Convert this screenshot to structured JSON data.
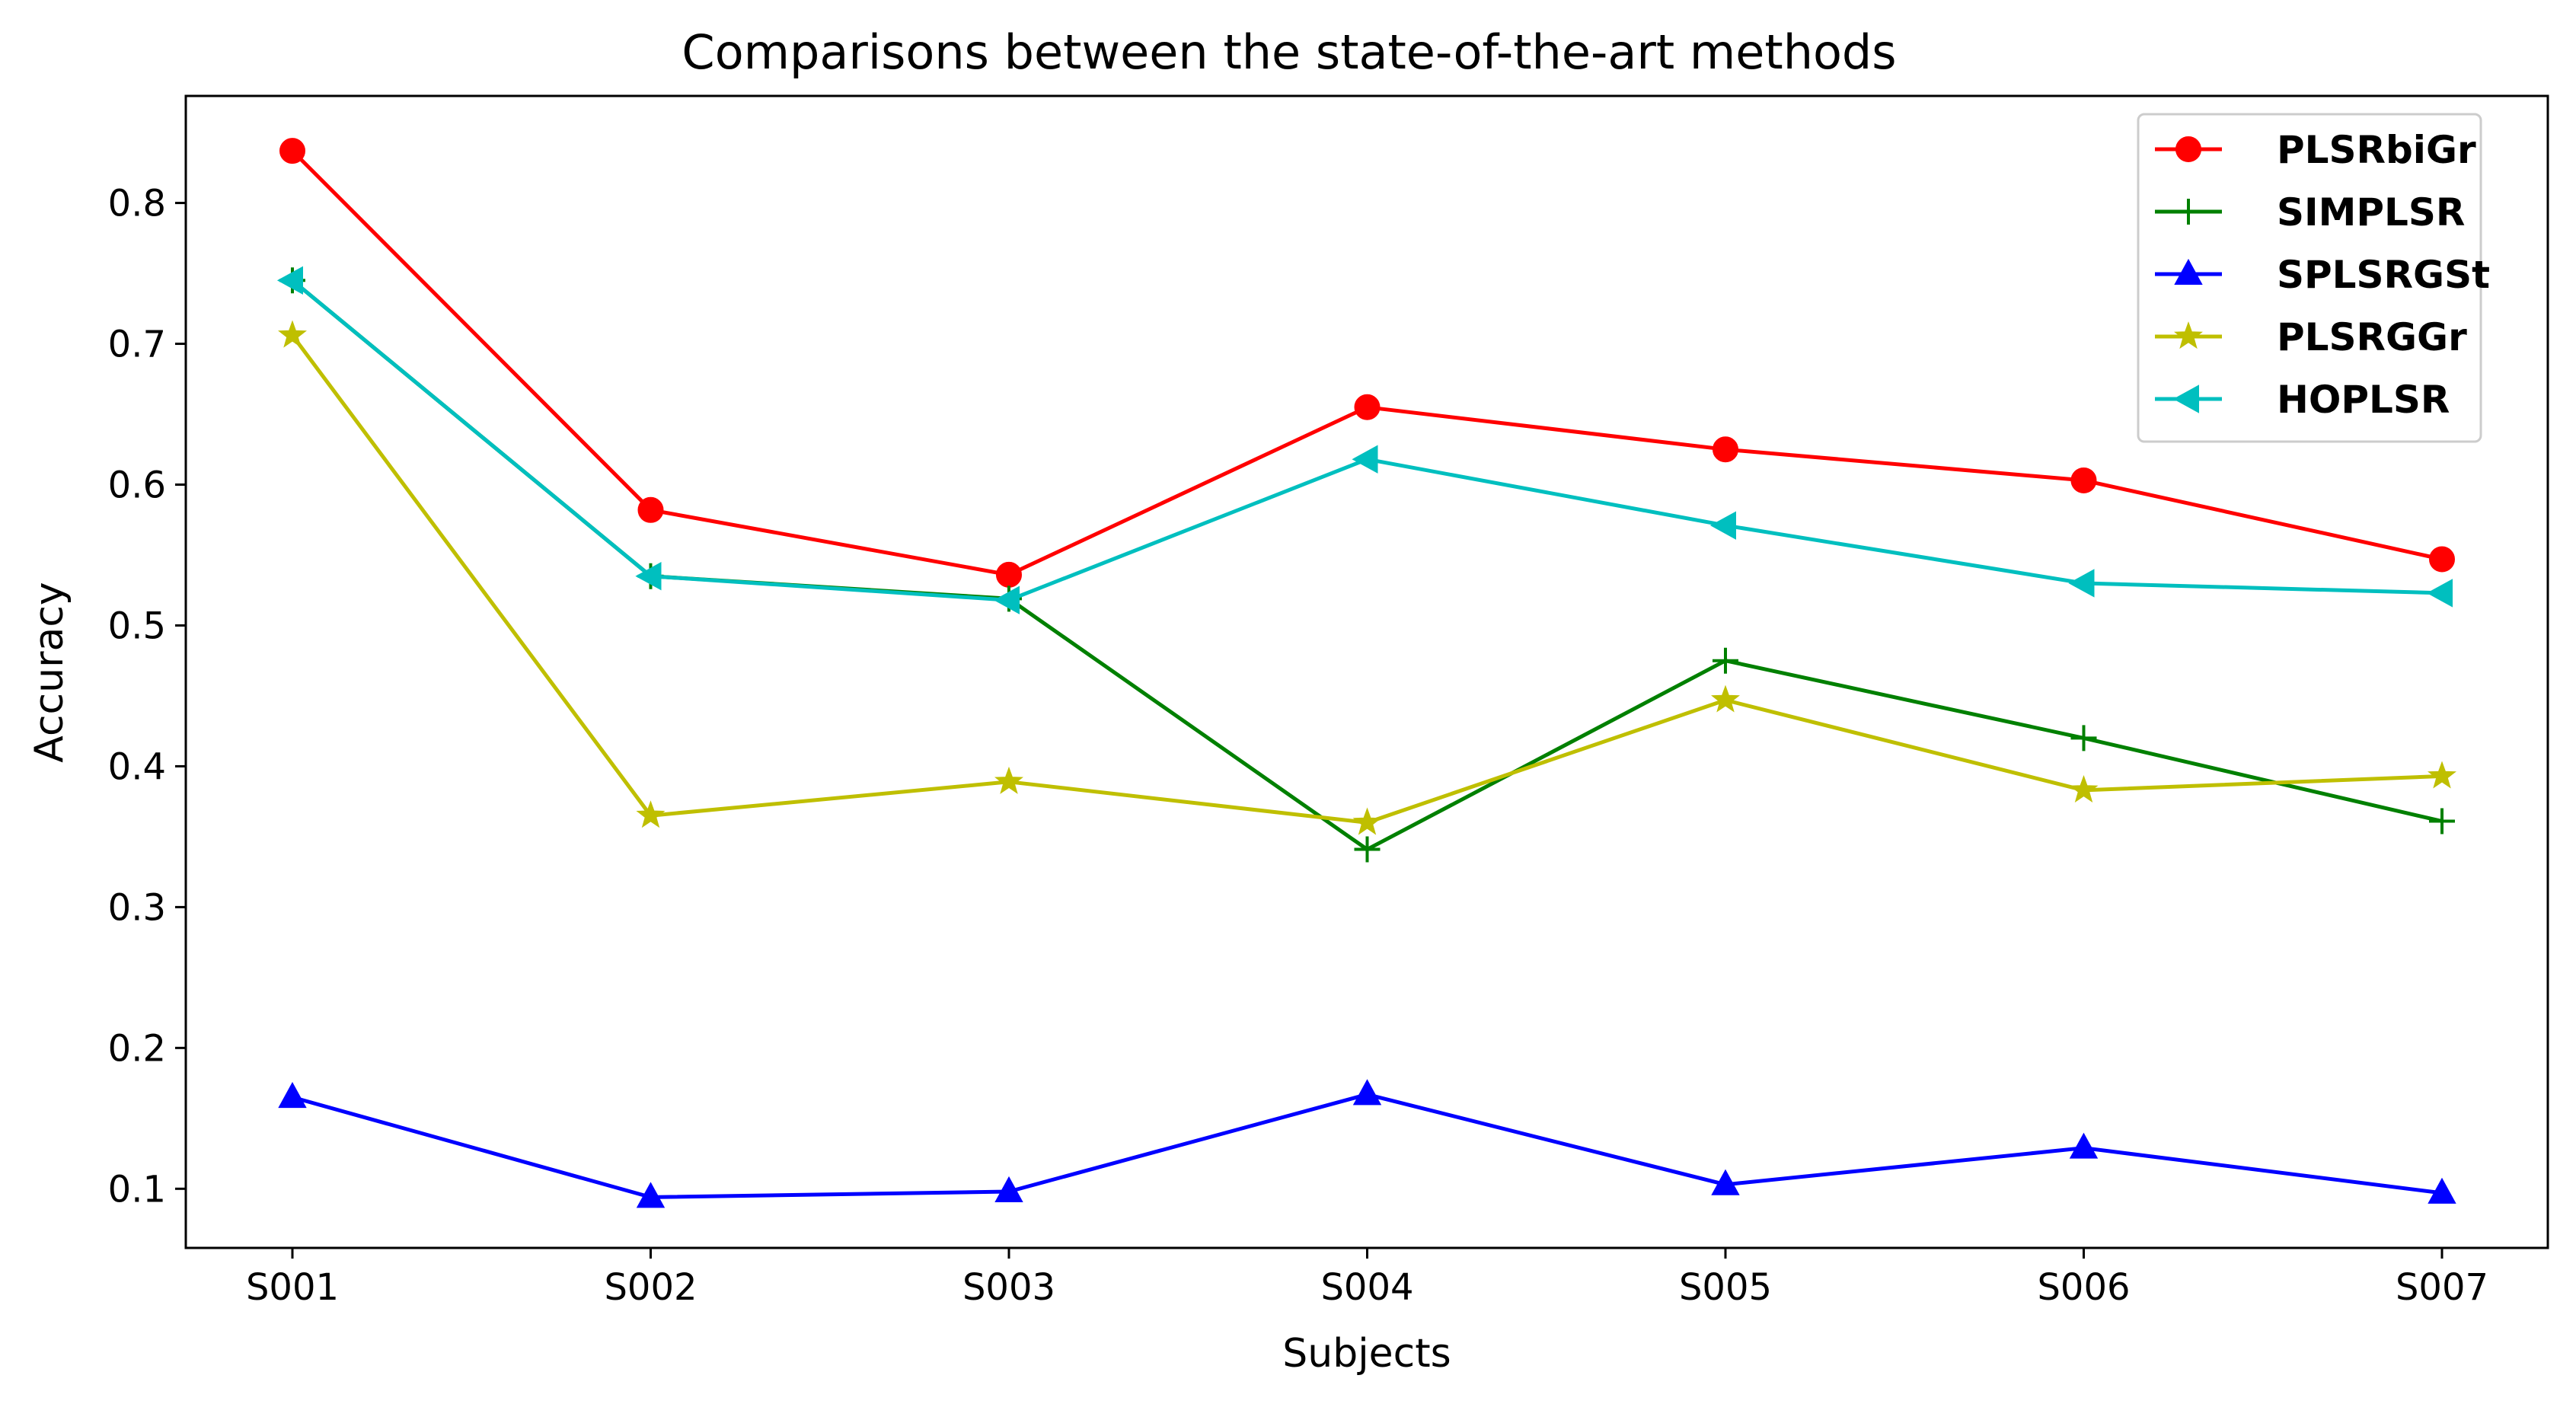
{
  "chart_data": {
    "type": "line",
    "title": "Comparisons between the state-of-the-art methods",
    "xlabel": "Subjects",
    "ylabel": "Accuracy",
    "categories": [
      "S001",
      "S002",
      "S003",
      "S004",
      "S005",
      "S006",
      "S007"
    ],
    "ylim": [
      0.058,
      0.876
    ],
    "yticks": [
      0.1,
      0.2,
      0.3,
      0.4,
      0.5,
      0.6,
      0.7,
      0.8
    ],
    "ytick_labels": [
      "0.1",
      "0.2",
      "0.3",
      "0.4",
      "0.5",
      "0.6",
      "0.7",
      "0.8"
    ],
    "grid": false,
    "legend_position": "top-right",
    "series": [
      {
        "name": "PLSRbiGr",
        "color": "#ff0000",
        "marker": "circle",
        "values": [
          0.837,
          0.582,
          0.536,
          0.655,
          0.625,
          0.603,
          0.547
        ]
      },
      {
        "name": "SIMPLSR",
        "color": "#008000",
        "marker": "plus",
        "values": [
          0.745,
          0.535,
          0.519,
          0.341,
          0.475,
          0.42,
          0.361
        ]
      },
      {
        "name": "SPLSRGSt",
        "color": "#0000ff",
        "marker": "triangle-up",
        "values": [
          0.165,
          0.094,
          0.098,
          0.167,
          0.103,
          0.129,
          0.097
        ]
      },
      {
        "name": "PLSRGGr",
        "color": "#bfbf00",
        "marker": "star",
        "values": [
          0.706,
          0.365,
          0.389,
          0.36,
          0.447,
          0.383,
          0.393
        ]
      },
      {
        "name": "HOPLSR",
        "color": "#00bfbf",
        "marker": "triangle-left",
        "values": [
          0.745,
          0.535,
          0.518,
          0.618,
          0.571,
          0.53,
          0.523
        ]
      }
    ]
  }
}
